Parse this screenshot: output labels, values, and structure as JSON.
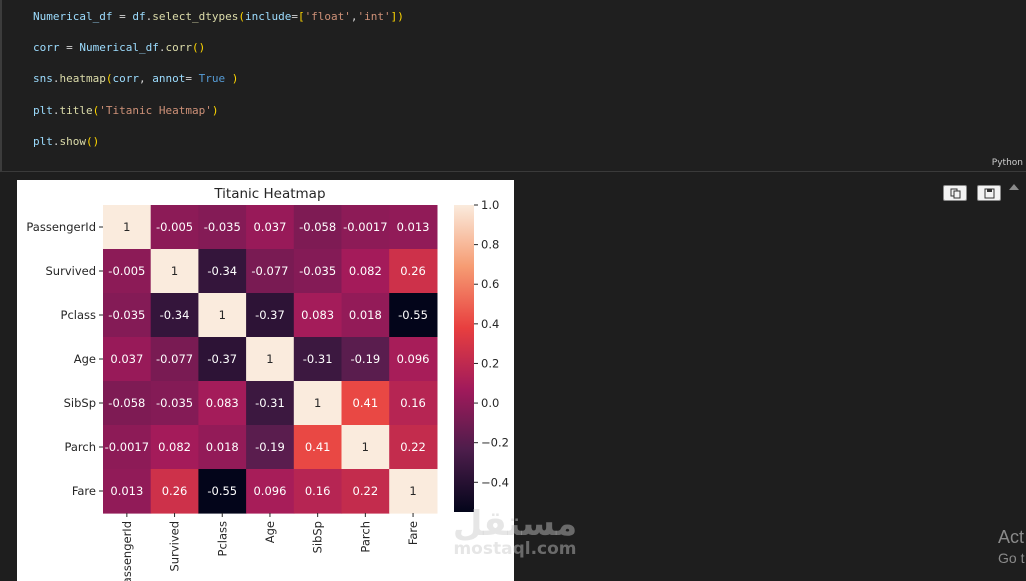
{
  "code_cell": {
    "lines": [
      [
        {
          "t": "Numerical_df",
          "c": "t-var"
        },
        {
          "t": " = ",
          "c": "t-pl"
        },
        {
          "t": "df",
          "c": "t-var"
        },
        {
          "t": ".",
          "c": "t-pl"
        },
        {
          "t": "select_dtypes",
          "c": "t-fn"
        },
        {
          "t": "(",
          "c": "t-br"
        },
        {
          "t": "include",
          "c": "t-var"
        },
        {
          "t": "=",
          "c": "t-pl"
        },
        {
          "t": "[",
          "c": "t-br"
        },
        {
          "t": "'float'",
          "c": "t-str"
        },
        {
          "t": ",",
          "c": "t-pl"
        },
        {
          "t": "'int'",
          "c": "t-str"
        },
        {
          "t": "]",
          "c": "t-br"
        },
        {
          "t": ")",
          "c": "t-br"
        }
      ],
      [
        {
          "t": "corr",
          "c": "t-var"
        },
        {
          "t": " = ",
          "c": "t-pl"
        },
        {
          "t": "Numerical_df",
          "c": "t-var"
        },
        {
          "t": ".",
          "c": "t-pl"
        },
        {
          "t": "corr",
          "c": "t-fn"
        },
        {
          "t": "()",
          "c": "t-br"
        }
      ],
      [
        {
          "t": "sns",
          "c": "t-var"
        },
        {
          "t": ".",
          "c": "t-pl"
        },
        {
          "t": "heatmap",
          "c": "t-fn"
        },
        {
          "t": "(",
          "c": "t-br"
        },
        {
          "t": "corr",
          "c": "t-var"
        },
        {
          "t": ", ",
          "c": "t-pl"
        },
        {
          "t": "annot",
          "c": "t-var"
        },
        {
          "t": "= ",
          "c": "t-pl"
        },
        {
          "t": "True",
          "c": "t-kw"
        },
        {
          "t": " ",
          "c": "t-pl"
        },
        {
          "t": ")",
          "c": "t-br"
        }
      ],
      [
        {
          "t": "plt",
          "c": "t-var"
        },
        {
          "t": ".",
          "c": "t-pl"
        },
        {
          "t": "title",
          "c": "t-fn"
        },
        {
          "t": "(",
          "c": "t-br"
        },
        {
          "t": "'Titanic Heatmap'",
          "c": "t-str"
        },
        {
          "t": ")",
          "c": "t-br"
        }
      ],
      [
        {
          "t": "plt",
          "c": "t-var"
        },
        {
          "t": ".",
          "c": "t-pl"
        },
        {
          "t": "show",
          "c": "t-fn"
        },
        {
          "t": "()",
          "c": "t-br"
        }
      ]
    ],
    "language": "Python"
  },
  "output_toolbar": {
    "icons": [
      "copy-icon",
      "save-icon",
      "collapse-output-icon"
    ]
  },
  "chart_data": {
    "type": "heatmap",
    "title": "Titanic Heatmap",
    "labels": [
      "PassengerId",
      "Survived",
      "Pclass",
      "Age",
      "SibSp",
      "Parch",
      "Fare"
    ],
    "x_tick_labels": [
      "PassengerId",
      "Survived",
      "Pclass",
      "Age",
      "SibSp",
      "Parch",
      "Fare"
    ],
    "values": [
      [
        1,
        -0.005,
        -0.035,
        0.037,
        -0.058,
        -0.0017,
        0.013
      ],
      [
        -0.005,
        1,
        -0.34,
        -0.077,
        -0.035,
        0.082,
        0.26
      ],
      [
        -0.035,
        -0.34,
        1,
        -0.37,
        0.083,
        0.018,
        -0.55
      ],
      [
        0.037,
        -0.077,
        -0.37,
        1,
        -0.31,
        -0.19,
        0.096
      ],
      [
        -0.058,
        -0.035,
        0.083,
        -0.31,
        1,
        0.41,
        0.16
      ],
      [
        -0.0017,
        0.082,
        0.018,
        -0.19,
        0.41,
        1,
        0.22
      ],
      [
        0.013,
        0.26,
        -0.55,
        0.096,
        0.16,
        0.22,
        1
      ]
    ],
    "annotations": [
      [
        "1",
        "-0.005",
        "-0.035",
        "0.037",
        "-0.058",
        "-0.0017",
        "0.013"
      ],
      [
        "-0.005",
        "1",
        "-0.34",
        "-0.077",
        "-0.035",
        "0.082",
        "0.26"
      ],
      [
        "-0.035",
        "-0.34",
        "1",
        "-0.37",
        "0.083",
        "0.018",
        "-0.55"
      ],
      [
        "0.037",
        "-0.077",
        "-0.37",
        "1",
        "-0.31",
        "-0.19",
        "0.096"
      ],
      [
        "-0.058",
        "-0.035",
        "0.083",
        "-0.31",
        "1",
        "0.41",
        "0.16"
      ],
      [
        "-0.0017",
        "0.082",
        "0.018",
        "-0.19",
        "0.41",
        "1",
        "0.22"
      ],
      [
        "0.013",
        "0.26",
        "-0.55",
        "0.096",
        "0.16",
        "0.22",
        "1"
      ]
    ],
    "colorbar": {
      "range": [
        -0.55,
        1
      ],
      "ticks": [
        1.0,
        0.8,
        0.6,
        0.4,
        0.2,
        0.0,
        -0.2,
        -0.4
      ],
      "tick_labels": [
        "1.0",
        "0.8",
        "0.6",
        "0.4",
        "0.2",
        "0.0",
        "−0.2",
        "−0.4"
      ],
      "colormap": "rocket"
    },
    "colors": {
      "colormap_stops": [
        "#03051a",
        "#4c1d4b",
        "#a11a5b",
        "#e83f3f",
        "#f69c73",
        "#faebdd"
      ]
    }
  },
  "watermark": {
    "arabic": "مستقل",
    "latin": "mostaql.com"
  },
  "activation": {
    "line1": "Act",
    "line2": "Go t"
  }
}
